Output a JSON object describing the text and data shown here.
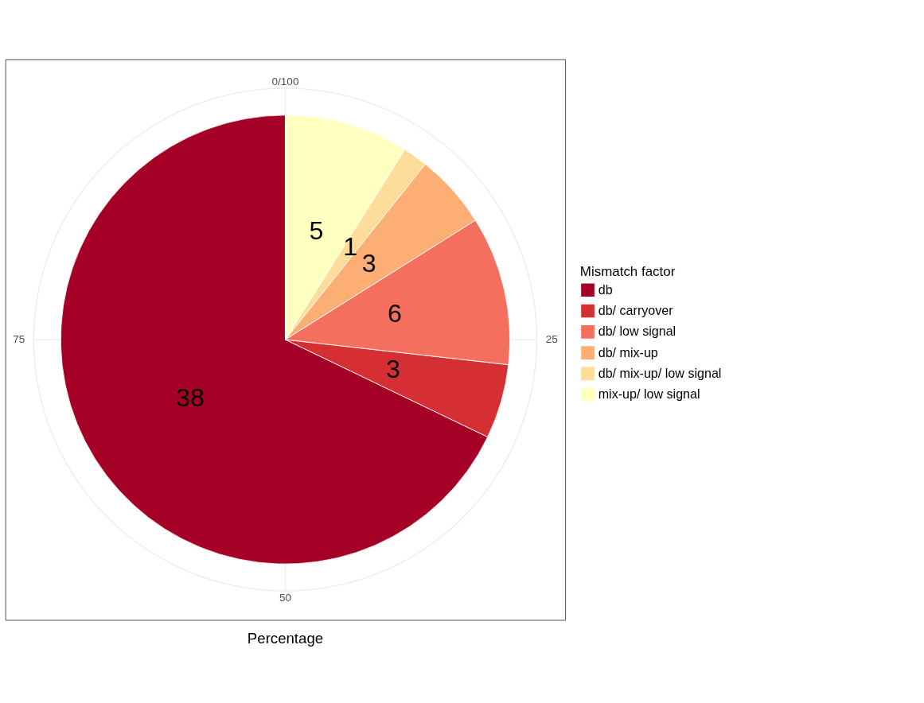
{
  "chart_data": {
    "type": "pie",
    "categories": [
      "db",
      "db/ carryover",
      "db/ low signal",
      "db/ mix-up",
      "db/ mix-up/ low signal",
      "mix-up/ low signal"
    ],
    "values": [
      38,
      3,
      6,
      3,
      1,
      5
    ],
    "colors": [
      "#a50026",
      "#d62f33",
      "#f46f5e",
      "#fdae75",
      "#fedc9a",
      "#ffffc0"
    ],
    "data_labels": true,
    "legend": "right",
    "legend_title": "Mismatch factor",
    "xlabel": "Percentage",
    "annotations": [
      "0/100",
      "25",
      "50",
      "75"
    ],
    "grid": true
  }
}
